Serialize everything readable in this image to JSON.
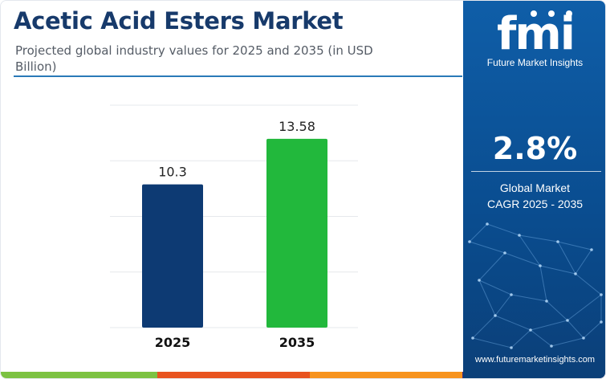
{
  "header": {
    "title": "Acetic Acid Esters Market",
    "subtitle": "Projected global industry values for 2025 and 2035 (in USD Billion)"
  },
  "chart_data": {
    "type": "bar",
    "title": "Acetic Acid Esters Market",
    "subtitle": "Projected global industry values for 2025 and 2035 (in USD Billion)",
    "categories": [
      "2025",
      "2035"
    ],
    "values": [
      10.3,
      13.58
    ],
    "value_labels": [
      "10.3",
      "13.58"
    ],
    "bar_colors": [
      "#0d3a73",
      "#22b83c"
    ],
    "ylim": [
      0,
      16
    ],
    "y_ticks": [
      0,
      4,
      8,
      12,
      16
    ],
    "grid": true,
    "y_axis_labels_shown": false,
    "xlabel": "",
    "ylabel": ""
  },
  "sidebar": {
    "logo_text": "fmi",
    "logo_tagline": "Future Market Insights",
    "cagr_value": "2.8%",
    "cagr_label_line1": "Global Market",
    "cagr_label_line2": "CAGR 2025 - 2035",
    "website": "www.futuremarketinsights.com"
  },
  "colors": {
    "title": "#173a6b",
    "accent": "#2a7ab8",
    "sidebar": "#0d56a0",
    "bar_2025": "#0d3a73",
    "bar_2035": "#22b83c",
    "stripe": [
      "#7cc242",
      "#e8531f",
      "#f7931d",
      "#4a2b7a"
    ]
  }
}
